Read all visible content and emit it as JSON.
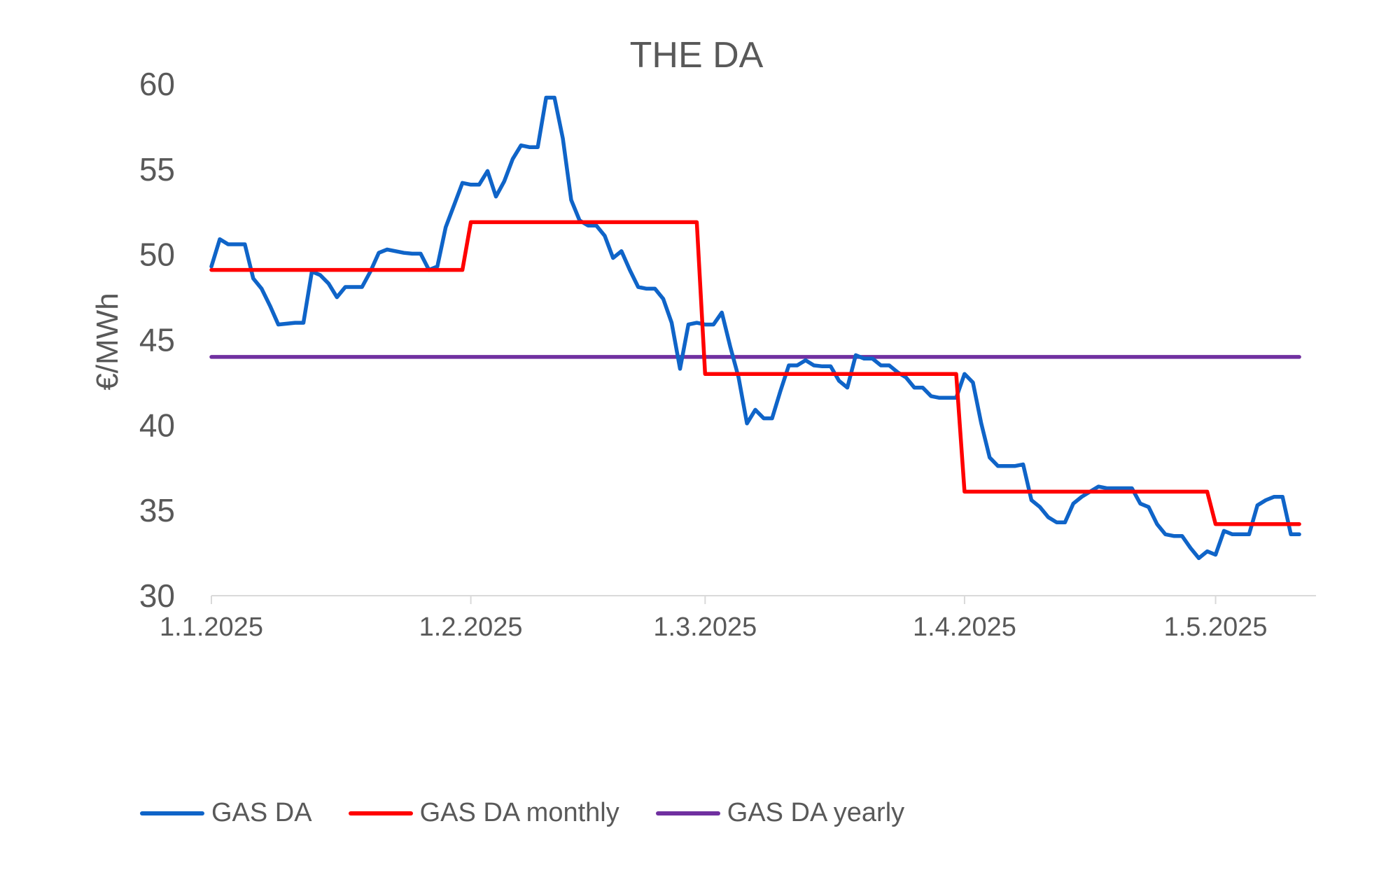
{
  "chart_data": {
    "type": "line",
    "title": "THE DA",
    "ylabel": "€/MWh",
    "ylim": [
      30,
      60
    ],
    "yticks": [
      "30",
      "35",
      "40",
      "45",
      "50",
      "55",
      "60"
    ],
    "grid": false,
    "legend_position": "bottom-left",
    "xlim": [
      "1.1.2025",
      "13.5.2025"
    ],
    "xticks": [
      {
        "date": "1.1.2025",
        "label": "1.1.2025"
      },
      {
        "date": "1.2.2025",
        "label": "1.2.2025"
      },
      {
        "date": "1.3.2025",
        "label": "1.3.2025"
      },
      {
        "date": "1.4.2025",
        "label": "1.4.2025"
      },
      {
        "date": "1.5.2025",
        "label": "1.5.2025"
      }
    ],
    "series": [
      {
        "name": "GAS DA",
        "color": "#0F64C8",
        "style": "daily",
        "points": [
          [
            "1.1.2025",
            49.3
          ],
          [
            "2.1.2025",
            50.9
          ],
          [
            "3.1.2025",
            50.6
          ],
          [
            "4.1.2025",
            50.6
          ],
          [
            "5.1.2025",
            50.6
          ],
          [
            "6.1.2025",
            48.6
          ],
          [
            "7.1.2025",
            48.0
          ],
          [
            "8.1.2025",
            47.0
          ],
          [
            "9.1.2025",
            45.9
          ],
          [
            "10.1.2025",
            45.95
          ],
          [
            "11.1.2025",
            46.0
          ],
          [
            "12.1.2025",
            46.0
          ],
          [
            "13.1.2025",
            49.0
          ],
          [
            "14.1.2025",
            48.8
          ],
          [
            "15.1.2025",
            48.3
          ],
          [
            "16.1.2025",
            47.5
          ],
          [
            "17.1.2025",
            48.1
          ],
          [
            "18.1.2025",
            48.1
          ],
          [
            "19.1.2025",
            48.1
          ],
          [
            "20.1.2025",
            49.0
          ],
          [
            "21.1.2025",
            50.1
          ],
          [
            "22.1.2025",
            50.3
          ],
          [
            "23.1.2025",
            50.2
          ],
          [
            "24.1.2025",
            50.1
          ],
          [
            "25.1.2025",
            50.05
          ],
          [
            "26.1.2025",
            50.05
          ],
          [
            "27.1.2025",
            49.1
          ],
          [
            "28.1.2025",
            49.3
          ],
          [
            "29.1.2025",
            51.6
          ],
          [
            "30.1.2025",
            52.9
          ],
          [
            "31.1.2025",
            54.2
          ],
          [
            "1.2.2025",
            54.1
          ],
          [
            "2.2.2025",
            54.1
          ],
          [
            "3.2.2025",
            54.9
          ],
          [
            "4.2.2025",
            53.4
          ],
          [
            "5.2.2025",
            54.3
          ],
          [
            "6.2.2025",
            55.6
          ],
          [
            "7.2.2025",
            56.4
          ],
          [
            "8.2.2025",
            56.3
          ],
          [
            "9.2.2025",
            56.3
          ],
          [
            "10.2.2025",
            59.2
          ],
          [
            "11.2.2025",
            59.2
          ],
          [
            "12.2.2025",
            56.8
          ],
          [
            "13.2.2025",
            53.2
          ],
          [
            "14.2.2025",
            52.0
          ],
          [
            "15.2.2025",
            51.7
          ],
          [
            "16.2.2025",
            51.7
          ],
          [
            "17.2.2025",
            51.1
          ],
          [
            "18.2.2025",
            49.8
          ],
          [
            "19.2.2025",
            50.2
          ],
          [
            "20.2.2025",
            49.1
          ],
          [
            "21.2.2025",
            48.1
          ],
          [
            "22.2.2025",
            48.0
          ],
          [
            "23.2.2025",
            48.0
          ],
          [
            "24.2.2025",
            47.4
          ],
          [
            "25.2.2025",
            46.0
          ],
          [
            "26.2.2025",
            43.3
          ],
          [
            "27.2.2025",
            45.9
          ],
          [
            "28.2.2025",
            46.0
          ],
          [
            "1.3.2025",
            45.9
          ],
          [
            "2.3.2025",
            45.9
          ],
          [
            "3.3.2025",
            46.6
          ],
          [
            "4.3.2025",
            44.6
          ],
          [
            "5.3.2025",
            42.8
          ],
          [
            "6.3.2025",
            40.1
          ],
          [
            "7.3.2025",
            40.9
          ],
          [
            "8.3.2025",
            40.4
          ],
          [
            "9.3.2025",
            40.4
          ],
          [
            "10.3.2025",
            42.0
          ],
          [
            "11.3.2025",
            43.5
          ],
          [
            "12.3.2025",
            43.5
          ],
          [
            "13.3.2025",
            43.8
          ],
          [
            "14.3.2025",
            43.5
          ],
          [
            "15.3.2025",
            43.45
          ],
          [
            "16.3.2025",
            43.45
          ],
          [
            "17.3.2025",
            42.6
          ],
          [
            "18.3.2025",
            42.2
          ],
          [
            "19.3.2025",
            44.1
          ],
          [
            "20.3.2025",
            43.9
          ],
          [
            "21.3.2025",
            43.9
          ],
          [
            "22.3.2025",
            43.5
          ],
          [
            "23.3.2025",
            43.5
          ],
          [
            "24.3.2025",
            43.1
          ],
          [
            "25.3.2025",
            42.8
          ],
          [
            "26.3.2025",
            42.2
          ],
          [
            "27.3.2025",
            42.2
          ],
          [
            "28.3.2025",
            41.7
          ],
          [
            "29.3.2025",
            41.6
          ],
          [
            "30.3.2025",
            41.6
          ],
          [
            "31.3.2025",
            41.6
          ],
          [
            "1.4.2025",
            43.0
          ],
          [
            "2.4.2025",
            42.5
          ],
          [
            "3.4.2025",
            40.1
          ],
          [
            "4.4.2025",
            38.1
          ],
          [
            "5.4.2025",
            37.6
          ],
          [
            "6.4.2025",
            37.6
          ],
          [
            "7.4.2025",
            37.6
          ],
          [
            "8.4.2025",
            37.7
          ],
          [
            "9.4.2025",
            35.6
          ],
          [
            "10.4.2025",
            35.2
          ],
          [
            "11.4.2025",
            34.6
          ],
          [
            "12.4.2025",
            34.3
          ],
          [
            "13.4.2025",
            34.3
          ],
          [
            "14.4.2025",
            35.4
          ],
          [
            "15.4.2025",
            35.8
          ],
          [
            "16.4.2025",
            36.1
          ],
          [
            "17.4.2025",
            36.4
          ],
          [
            "18.4.2025",
            36.3
          ],
          [
            "19.4.2025",
            36.3
          ],
          [
            "20.4.2025",
            36.3
          ],
          [
            "21.4.2025",
            36.3
          ],
          [
            "22.4.2025",
            35.4
          ],
          [
            "23.4.2025",
            35.2
          ],
          [
            "24.4.2025",
            34.2
          ],
          [
            "25.4.2025",
            33.6
          ],
          [
            "26.4.2025",
            33.5
          ],
          [
            "27.4.2025",
            33.5
          ],
          [
            "28.4.2025",
            32.8
          ],
          [
            "29.4.2025",
            32.2
          ],
          [
            "30.4.2025",
            32.6
          ],
          [
            "1.5.2025",
            32.4
          ],
          [
            "2.5.2025",
            33.8
          ],
          [
            "3.5.2025",
            33.6
          ],
          [
            "4.5.2025",
            33.6
          ],
          [
            "5.5.2025",
            33.6
          ],
          [
            "6.5.2025",
            35.3
          ],
          [
            "7.5.2025",
            35.6
          ],
          [
            "8.5.2025",
            35.8
          ],
          [
            "9.5.2025",
            35.8
          ],
          [
            "10.5.2025",
            33.6
          ],
          [
            "11.5.2025",
            33.6
          ]
        ]
      },
      {
        "name": "GAS DA monthly",
        "color": "#FF0000",
        "style": "step",
        "points": [
          [
            "1.1.2025",
            49.1
          ],
          [
            "31.1.2025",
            49.1
          ],
          [
            "1.2.2025",
            51.9
          ],
          [
            "28.2.2025",
            51.9
          ],
          [
            "1.3.2025",
            43.0
          ],
          [
            "31.3.2025",
            43.0
          ],
          [
            "1.4.2025",
            36.1
          ],
          [
            "30.4.2025",
            36.1
          ],
          [
            "1.5.2025",
            34.2
          ],
          [
            "11.5.2025",
            34.2
          ]
        ]
      },
      {
        "name": "GAS DA yearly",
        "color": "#7030A0",
        "style": "flat",
        "points": [
          [
            "1.1.2025",
            44.0
          ],
          [
            "11.5.2025",
            44.0
          ]
        ]
      }
    ]
  }
}
